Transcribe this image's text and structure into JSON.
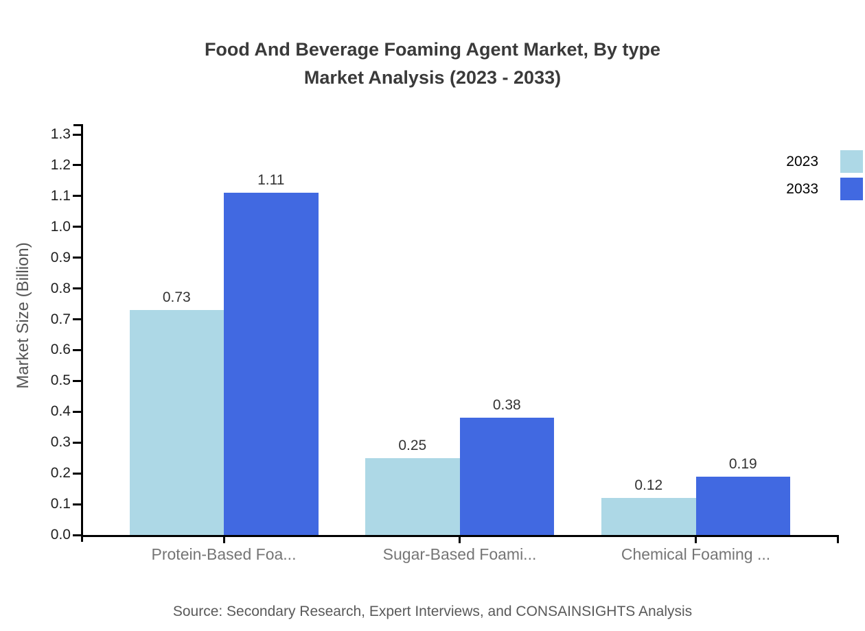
{
  "page": {
    "background": "#ffffff"
  },
  "chart_data": {
    "type": "bar",
    "title_lines": [
      "Food And Beverage Foaming Agent Market, By type",
      "Market Analysis (2023 - 2033)"
    ],
    "ylabel": "Market Size (Billion)",
    "categories": [
      "Protein-Based Foa...",
      "Sugar-Based Foami...",
      "Chemical Foaming ..."
    ],
    "series": [
      {
        "name": "2023",
        "color": "#ADD8E6",
        "values": [
          0.73,
          0.25,
          0.12
        ]
      },
      {
        "name": "2033",
        "color": "#4169E1",
        "values": [
          1.11,
          0.38,
          0.19
        ]
      }
    ],
    "ylim": [
      0.0,
      1.3
    ],
    "y_ticks": [
      "0.0",
      "0.1",
      "0.2",
      "0.3",
      "0.4",
      "0.5",
      "0.6",
      "0.7",
      "0.8",
      "0.9",
      "1.0",
      "1.1",
      "1.2",
      "1.3"
    ],
    "grid": false,
    "legend_position": "top-right",
    "axis_color": "#000000"
  },
  "footer": {
    "source": "Source: Secondary Research, Expert Interviews, and CONSAINSIGHTS Analysis"
  }
}
